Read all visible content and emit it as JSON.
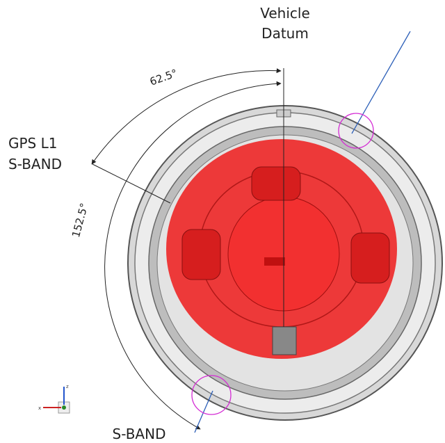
{
  "labels": {
    "datum": {
      "line1": "Vehicle",
      "line2": "Datum"
    },
    "angle_gps": "62.5°",
    "gps": {
      "line1": "GPS L1",
      "line2": "S-BAND"
    },
    "angle_sband": "152.5°",
    "sband_bottom": "S-BAND",
    "axes": {
      "z": "z",
      "x": "x"
    }
  }
}
